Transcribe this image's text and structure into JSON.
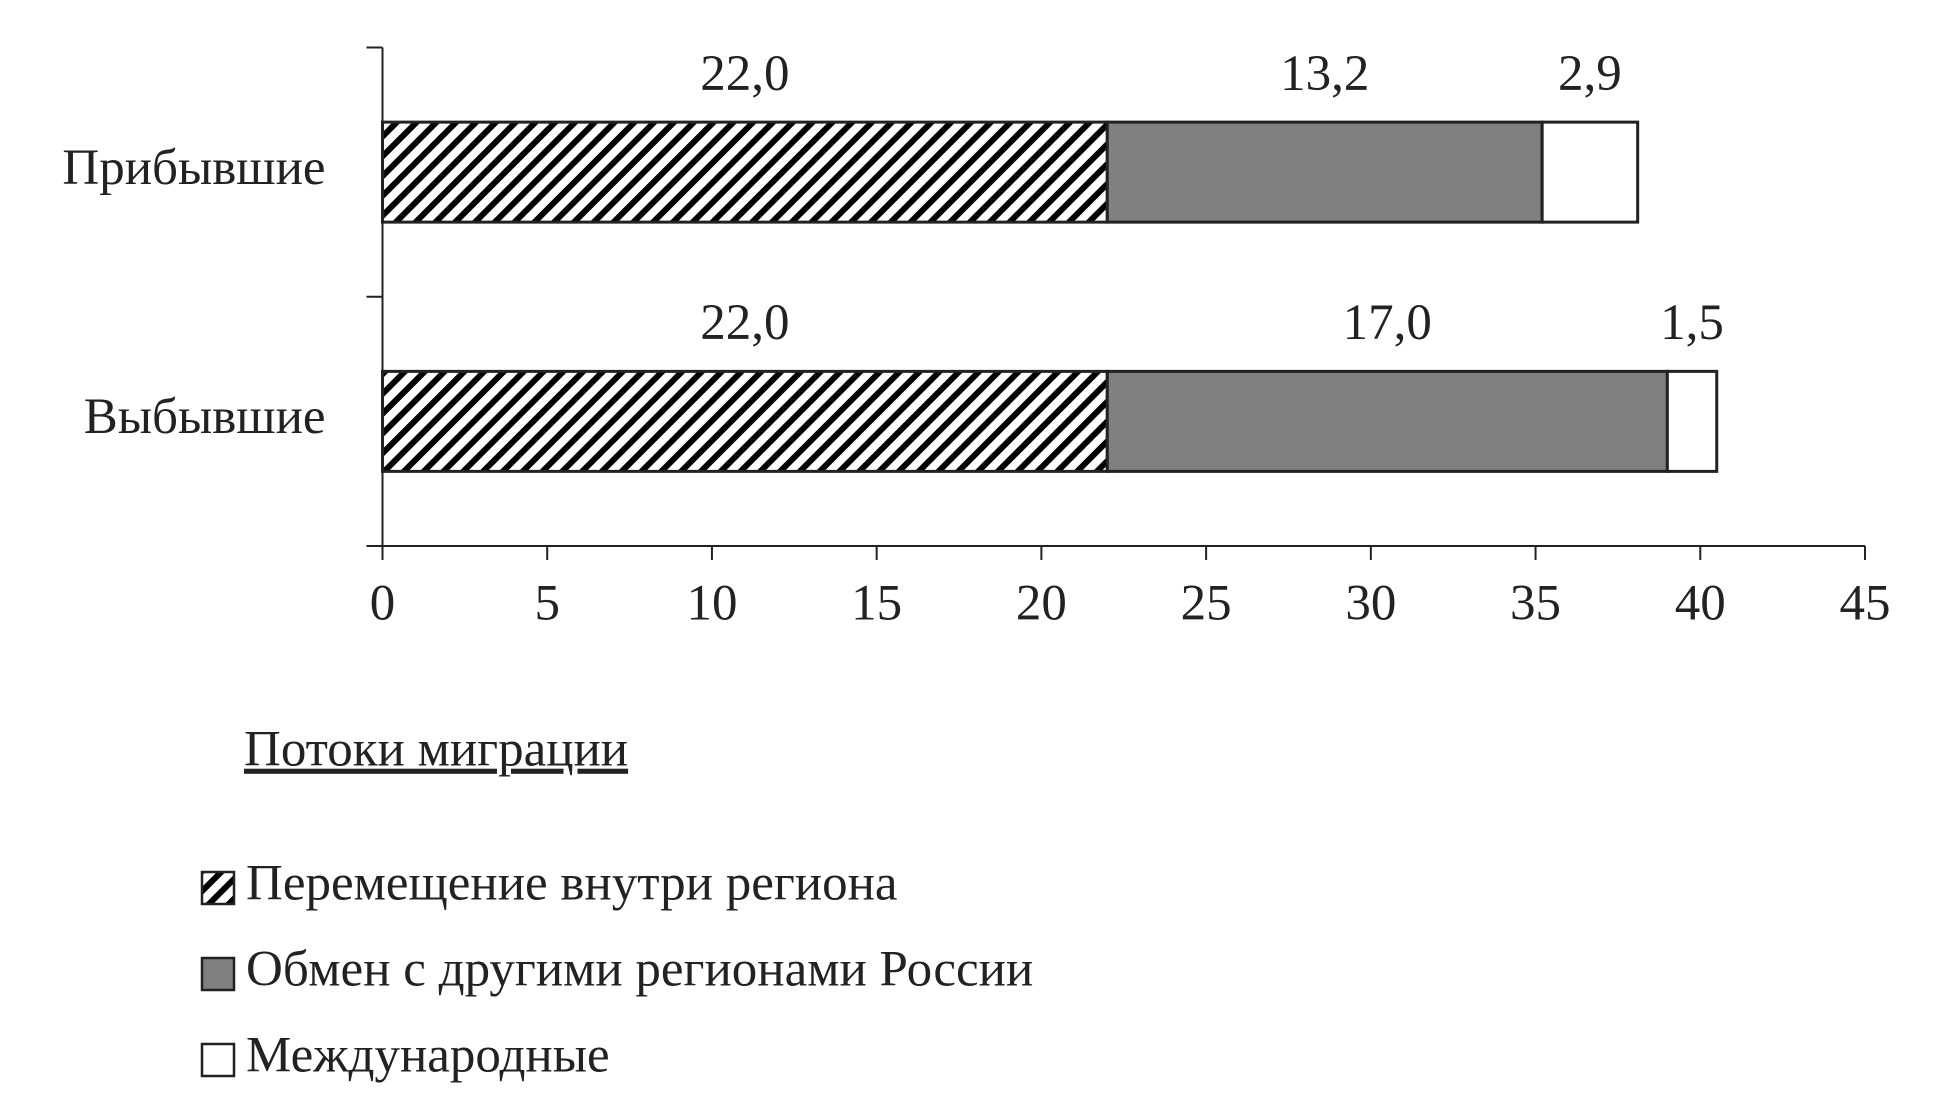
{
  "chart_data": {
    "type": "hbar-stacked",
    "categories": [
      "Прибывшие",
      "Выбывшие"
    ],
    "series": [
      {
        "name": "Перемещение внутри региона",
        "color": "#000000",
        "pattern": "hatch",
        "values": [
          22.0,
          22.0
        ],
        "value_labels": [
          "22,0",
          "22,0"
        ]
      },
      {
        "name": "Обмен с другими регионами России",
        "color": "#808080",
        "values": [
          13.2,
          17.0
        ],
        "value_labels": [
          "13,2",
          "17,0"
        ]
      },
      {
        "name": "Международные",
        "color": "#ffffff",
        "values": [
          2.9,
          1.5
        ],
        "value_labels": [
          "2,9",
          "1,5"
        ]
      }
    ],
    "xlim": [
      0,
      45
    ],
    "xticks": [
      0,
      5,
      10,
      15,
      20,
      25,
      30,
      35,
      40,
      45
    ],
    "legend_title": "Потоки миграции"
  }
}
